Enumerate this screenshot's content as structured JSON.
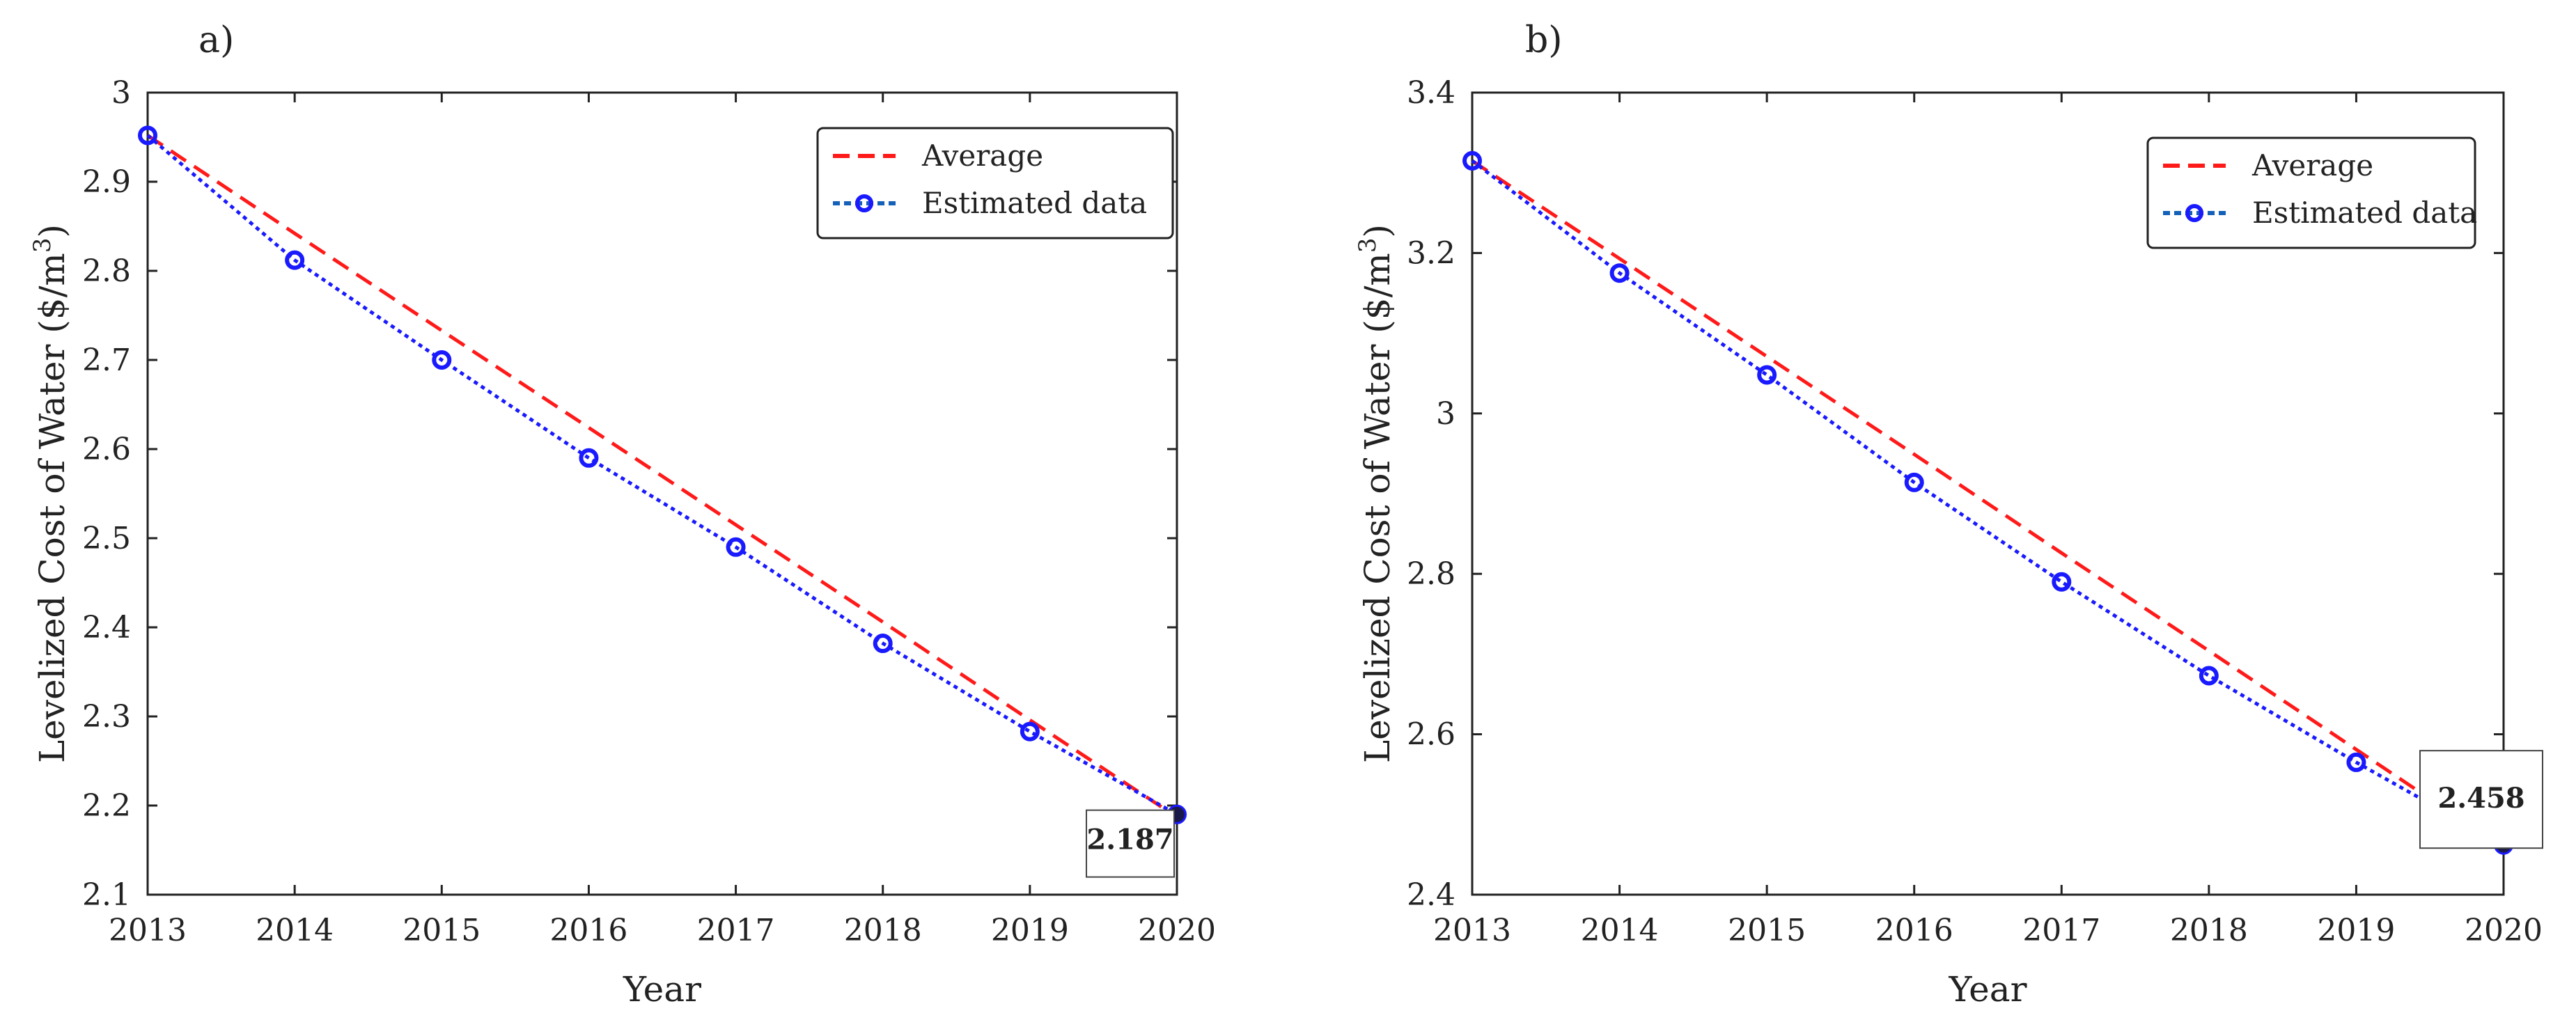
{
  "chart_data": [
    {
      "type": "line",
      "panel_label": "a)",
      "title": "",
      "xlabel": "Year",
      "ylabel_main": "Levelized Cost of Water ($/m",
      "ylabel_sup": "3",
      "ylabel_close": ")",
      "x": [
        2013,
        2014,
        2015,
        2016,
        2017,
        2018,
        2019,
        2020
      ],
      "x_tick_labels": [
        "2013",
        "2014",
        "2015",
        "2016",
        "2017",
        "2018",
        "2019",
        "2020"
      ],
      "xlim": [
        2013,
        2020
      ],
      "ylim": [
        2.1,
        3.0
      ],
      "y_ticks": [
        2.1,
        2.2,
        2.3,
        2.4,
        2.5,
        2.6,
        2.7,
        2.8,
        2.9,
        3.0
      ],
      "y_tick_labels": [
        "2.1",
        "2.2",
        "2.3",
        "2.4",
        "2.5",
        "2.6",
        "2.7",
        "2.8",
        "2.9",
        "3"
      ],
      "series": [
        {
          "name": "Average",
          "style": "dashed",
          "color": "#ff1a1a",
          "values": [
            2.952,
            2.842,
            2.733,
            2.624,
            2.515,
            2.406,
            2.296,
            2.187
          ]
        },
        {
          "name": "Estimated data",
          "style": "dotted-marker",
          "color": "#1a1aff",
          "values": [
            2.952,
            2.812,
            2.7,
            2.59,
            2.49,
            2.382,
            2.283,
            2.19
          ]
        }
      ],
      "legend": {
        "entries": [
          "Average",
          "Estimated data"
        ],
        "location": "top-right"
      },
      "annotation": {
        "text": "2.187",
        "x": 2020,
        "y": 2.187
      }
    },
    {
      "type": "line",
      "panel_label": "b)",
      "title": "",
      "xlabel": "Year",
      "ylabel_main": "Levelized Cost of Water ($/m",
      "ylabel_sup": "3",
      "ylabel_close": ")",
      "x": [
        2013,
        2014,
        2015,
        2016,
        2017,
        2018,
        2019,
        2020
      ],
      "x_tick_labels": [
        "2013",
        "2014",
        "2015",
        "2016",
        "2017",
        "2018",
        "2019",
        "2020"
      ],
      "xlim": [
        2013,
        2020
      ],
      "ylim": [
        2.4,
        3.4
      ],
      "y_ticks": [
        2.4,
        2.6,
        2.8,
        3.0,
        3.2,
        3.4
      ],
      "y_tick_labels": [
        "2.4",
        "2.6",
        "2.8",
        "3",
        "3.2",
        "3.4"
      ],
      "series": [
        {
          "name": "Average",
          "style": "dashed",
          "color": "#ff1a1a",
          "values": [
            3.315,
            3.193,
            3.071,
            2.949,
            2.826,
            2.704,
            2.581,
            2.458
          ]
        },
        {
          "name": "Estimated data",
          "style": "dotted-marker",
          "color": "#1a1aff",
          "values": [
            3.315,
            3.175,
            3.048,
            2.914,
            2.79,
            2.673,
            2.565,
            2.462
          ]
        }
      ],
      "legend": {
        "entries": [
          "Average",
          "Estimated data"
        ],
        "location": "top-right"
      },
      "annotation": {
        "text": "2.458",
        "x": 2020,
        "y": 2.458
      }
    }
  ]
}
